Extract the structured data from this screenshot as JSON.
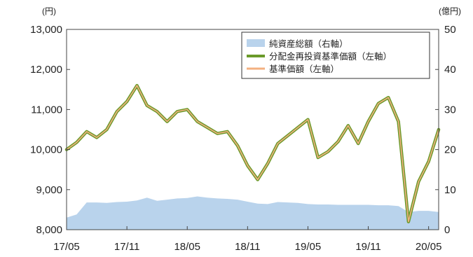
{
  "chart_data": {
    "type": "line",
    "left_unit": "(円)",
    "right_unit": "(億円)",
    "x_ticks": [
      "17/05",
      "17/11",
      "18/05",
      "18/11",
      "19/05",
      "19/11",
      "20/05"
    ],
    "y_left": {
      "min": 8000,
      "max": 13000,
      "ticks": [
        "8,000",
        "9,000",
        "10,000",
        "11,000",
        "12,000",
        "13,000"
      ]
    },
    "y_right": {
      "min": 0,
      "max": 50,
      "ticks": [
        "0",
        "10",
        "20",
        "30",
        "40",
        "50"
      ]
    },
    "legend_position": "top-right",
    "grid": false,
    "series": [
      {
        "name": "純資産総額（右軸）",
        "axis": "right",
        "style": "area",
        "color": "#b9d3ec",
        "x": [
          "2017-05",
          "2017-06",
          "2017-07",
          "2017-08",
          "2017-09",
          "2017-10",
          "2017-11",
          "2017-12",
          "2018-01",
          "2018-02",
          "2018-03",
          "2018-04",
          "2018-05",
          "2018-06",
          "2018-07",
          "2018-08",
          "2018-09",
          "2018-10",
          "2018-11",
          "2018-12",
          "2019-01",
          "2019-02",
          "2019-03",
          "2019-04",
          "2019-05",
          "2019-06",
          "2019-07",
          "2019-08",
          "2019-09",
          "2019-10",
          "2019-11",
          "2019-12",
          "2020-01",
          "2020-02",
          "2020-03",
          "2020-04",
          "2020-05",
          "2020-06"
        ],
        "values": [
          3.0,
          3.8,
          6.8,
          6.8,
          6.7,
          6.9,
          7.0,
          7.3,
          8.0,
          7.2,
          7.5,
          7.8,
          7.9,
          8.3,
          8.0,
          7.8,
          7.7,
          7.5,
          7.0,
          6.5,
          6.4,
          6.9,
          6.8,
          6.7,
          6.4,
          6.3,
          6.3,
          6.2,
          6.2,
          6.2,
          6.2,
          6.1,
          6.1,
          5.9,
          4.4,
          4.7,
          4.7,
          4.4
        ]
      },
      {
        "name": "分配金再投資基準価額（左軸）",
        "axis": "left",
        "style": "line",
        "color": "#6a9a2a",
        "x": [
          "2017-05",
          "2017-06",
          "2017-07",
          "2017-08",
          "2017-09",
          "2017-10",
          "2017-11",
          "2017-12",
          "2018-01",
          "2018-02",
          "2018-03",
          "2018-04",
          "2018-05",
          "2018-06",
          "2018-07",
          "2018-08",
          "2018-09",
          "2018-10",
          "2018-11",
          "2018-12",
          "2019-01",
          "2019-02",
          "2019-03",
          "2019-04",
          "2019-05",
          "2019-06",
          "2019-07",
          "2019-08",
          "2019-09",
          "2019-10",
          "2019-11",
          "2019-12",
          "2020-01",
          "2020-02",
          "2020-03",
          "2020-04",
          "2020-05",
          "2020-06"
        ],
        "values": [
          10000,
          10180,
          10450,
          10300,
          10500,
          10950,
          11200,
          11600,
          11100,
          10950,
          10700,
          10950,
          11000,
          10700,
          10550,
          10400,
          10450,
          10100,
          9600,
          9250,
          9650,
          10150,
          10350,
          10550,
          10750,
          9800,
          9950,
          10200,
          10600,
          10150,
          10700,
          11150,
          11300,
          10700,
          8200,
          9200,
          9700,
          10500
        ]
      },
      {
        "name": "基準価額（左軸）",
        "axis": "left",
        "style": "line",
        "color": "#f3b080",
        "x": [
          "2017-05",
          "2017-06",
          "2017-07",
          "2017-08",
          "2017-09",
          "2017-10",
          "2017-11",
          "2017-12",
          "2018-01",
          "2018-02",
          "2018-03",
          "2018-04",
          "2018-05",
          "2018-06",
          "2018-07",
          "2018-08",
          "2018-09",
          "2018-10",
          "2018-11",
          "2018-12",
          "2019-01",
          "2019-02",
          "2019-03",
          "2019-04",
          "2019-05",
          "2019-06",
          "2019-07",
          "2019-08",
          "2019-09",
          "2019-10",
          "2019-11",
          "2019-12",
          "2020-01",
          "2020-02",
          "2020-03",
          "2020-04",
          "2020-05",
          "2020-06"
        ],
        "values": [
          10000,
          10180,
          10450,
          10300,
          10500,
          10950,
          11200,
          11600,
          11100,
          10950,
          10700,
          10950,
          11000,
          10700,
          10550,
          10400,
          10450,
          10100,
          9600,
          9250,
          9650,
          10150,
          10350,
          10550,
          10750,
          9800,
          9950,
          10200,
          10600,
          10150,
          10700,
          11150,
          11300,
          10700,
          8200,
          9200,
          9700,
          10500
        ]
      }
    ]
  }
}
